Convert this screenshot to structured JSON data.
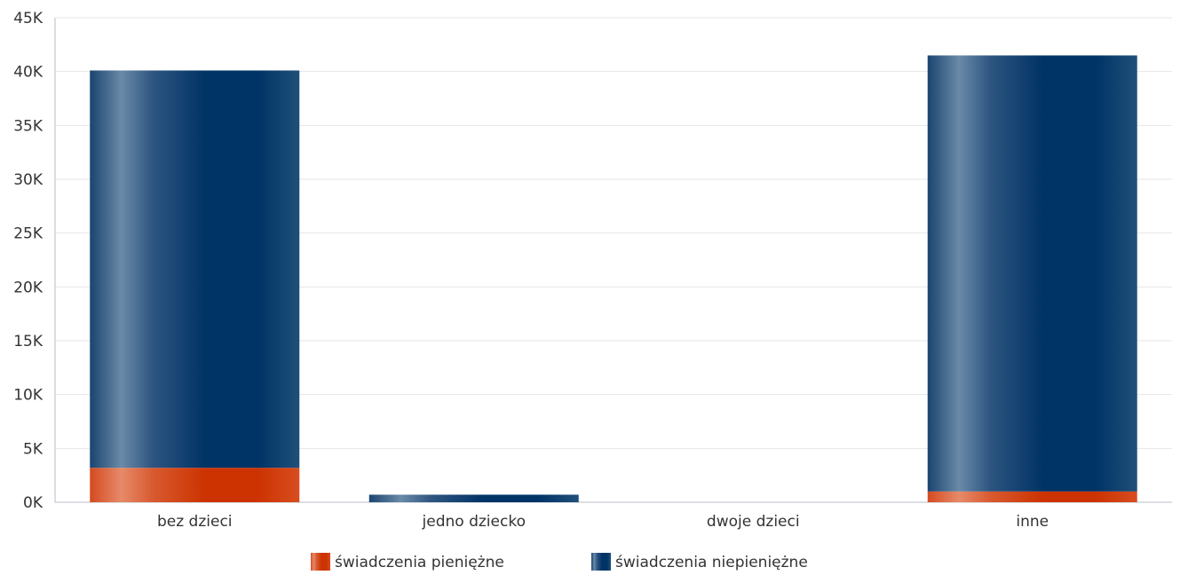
{
  "chart_data": {
    "type": "bar",
    "stacked": true,
    "categories": [
      "bez dzieci",
      "jedno dziecko",
      "dwoje dzieci",
      "inne"
    ],
    "series": [
      {
        "name": "świadczenia pieniężne",
        "color": "#cc3300",
        "values": [
          3200,
          0,
          0,
          1000
        ]
      },
      {
        "name": "świadczenia niepieniężne",
        "color": "#003366",
        "values": [
          36900,
          700,
          0,
          40500
        ]
      }
    ],
    "yticks": [
      "0K",
      "5K",
      "10K",
      "15K",
      "20K",
      "25K",
      "30K",
      "35K",
      "40K",
      "45K"
    ],
    "ylim": [
      0,
      45000
    ],
    "grid": true,
    "legend_position": "bottom-center",
    "title": "",
    "xlabel": "",
    "ylabel": ""
  }
}
